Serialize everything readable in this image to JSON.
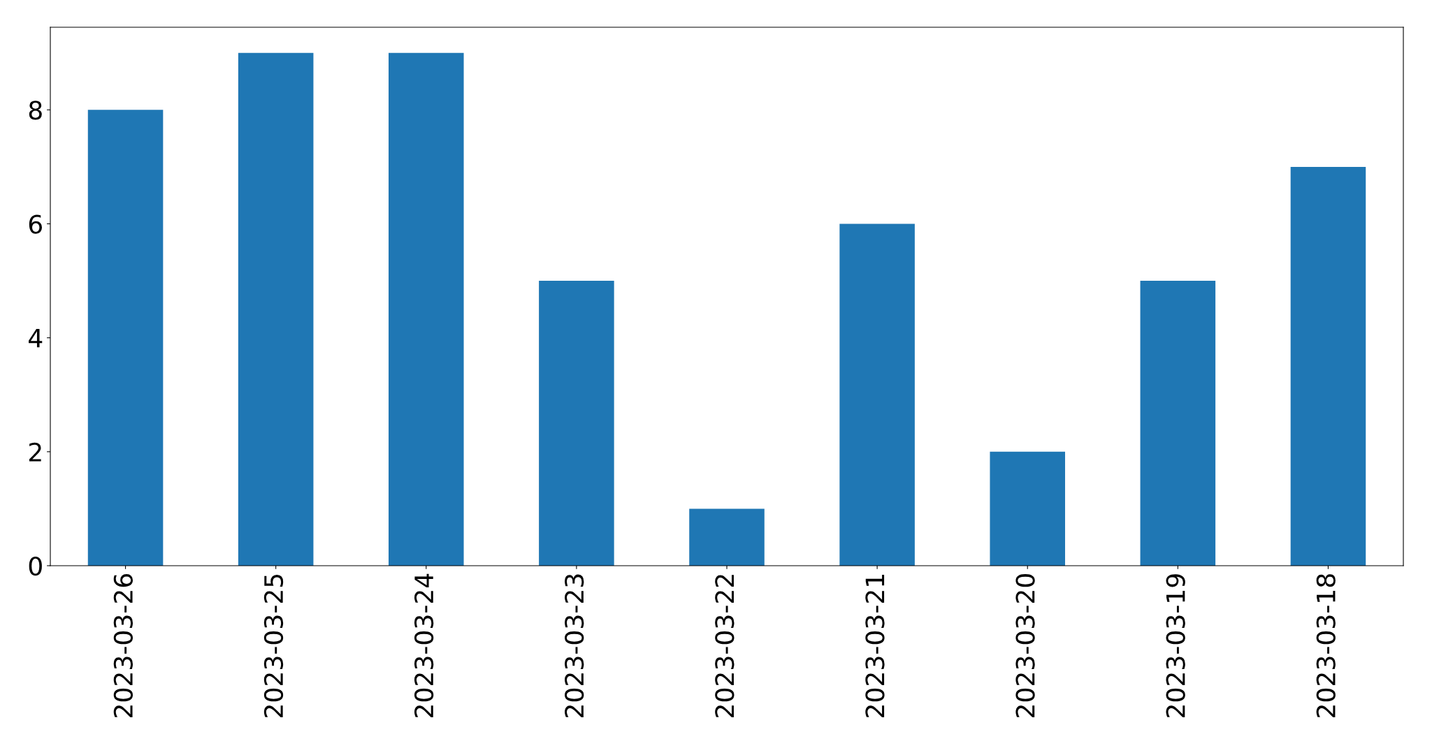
{
  "chart_data": {
    "type": "bar",
    "categories": [
      "2023-03-26",
      "2023-03-25",
      "2023-03-24",
      "2023-03-23",
      "2023-03-22",
      "2023-03-21",
      "2023-03-20",
      "2023-03-19",
      "2023-03-18"
    ],
    "values": [
      8,
      9,
      9,
      5,
      1,
      6,
      2,
      5,
      7
    ],
    "color": "#1f77b4",
    "ylim": [
      0,
      9.45
    ],
    "yticks": [
      0,
      2,
      4,
      6,
      8
    ],
    "grid": false
  }
}
